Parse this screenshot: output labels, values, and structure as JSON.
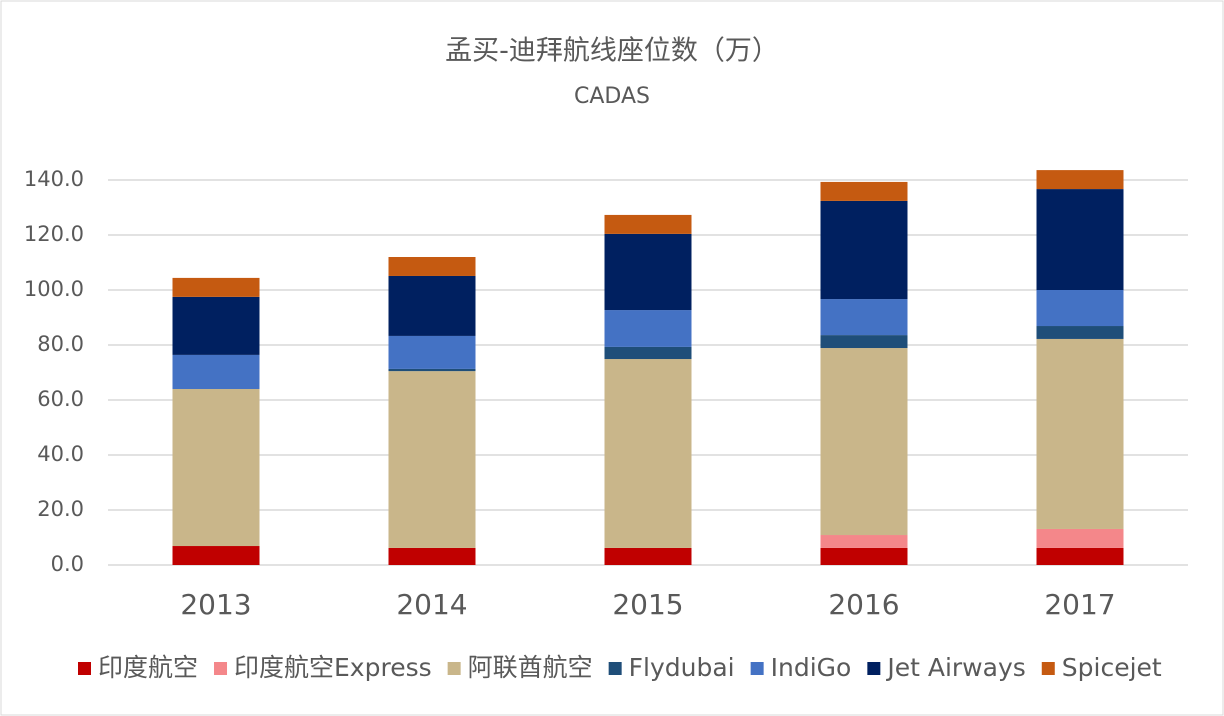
{
  "chart_data": {
    "type": "stacked_bar",
    "title": "孟买-迪拜航线座位数（万）",
    "subtitle": "CADAS",
    "categories": [
      "2013",
      "2014",
      "2015",
      "2016",
      "2017"
    ],
    "series": [
      {
        "name": "印度航空",
        "color": "#c00000",
        "values": [
          6.9,
          6.2,
          6.2,
          6.2,
          6.2
        ]
      },
      {
        "name": "印度航空Express",
        "color": "#f4878a",
        "values": [
          0,
          0,
          0,
          4.7,
          6.9
        ]
      },
      {
        "name": "阿联酋航空",
        "color": "#c9b68a",
        "values": [
          57.1,
          64.3,
          68.7,
          68.0,
          69.1
        ]
      },
      {
        "name": "Flydubai",
        "color": "#1f4e79",
        "values": [
          0,
          0.8,
          4.4,
          4.7,
          4.7
        ]
      },
      {
        "name": "IndiGo",
        "color": "#4472c4",
        "values": [
          12.4,
          12.0,
          13.4,
          13.1,
          13.1
        ]
      },
      {
        "name": "Jet Airways",
        "color": "#002060",
        "values": [
          21.1,
          21.8,
          27.7,
          35.7,
          36.7
        ]
      },
      {
        "name": "Spicejet",
        "color": "#c55a11",
        "values": [
          6.9,
          6.9,
          6.9,
          6.9,
          6.9
        ]
      }
    ],
    "ylim": [
      0,
      140
    ],
    "yticks": [
      {
        "value": 0,
        "label": "0.0"
      },
      {
        "value": 20,
        "label": "20.0"
      },
      {
        "value": 40,
        "label": "40.0"
      },
      {
        "value": 60,
        "label": "60.0"
      },
      {
        "value": 80,
        "label": "80.0"
      },
      {
        "value": 100,
        "label": "100.0"
      },
      {
        "value": 120,
        "label": "120.0"
      },
      {
        "value": 140,
        "label": "140.0"
      }
    ],
    "grid": true,
    "legend": "bottom"
  }
}
